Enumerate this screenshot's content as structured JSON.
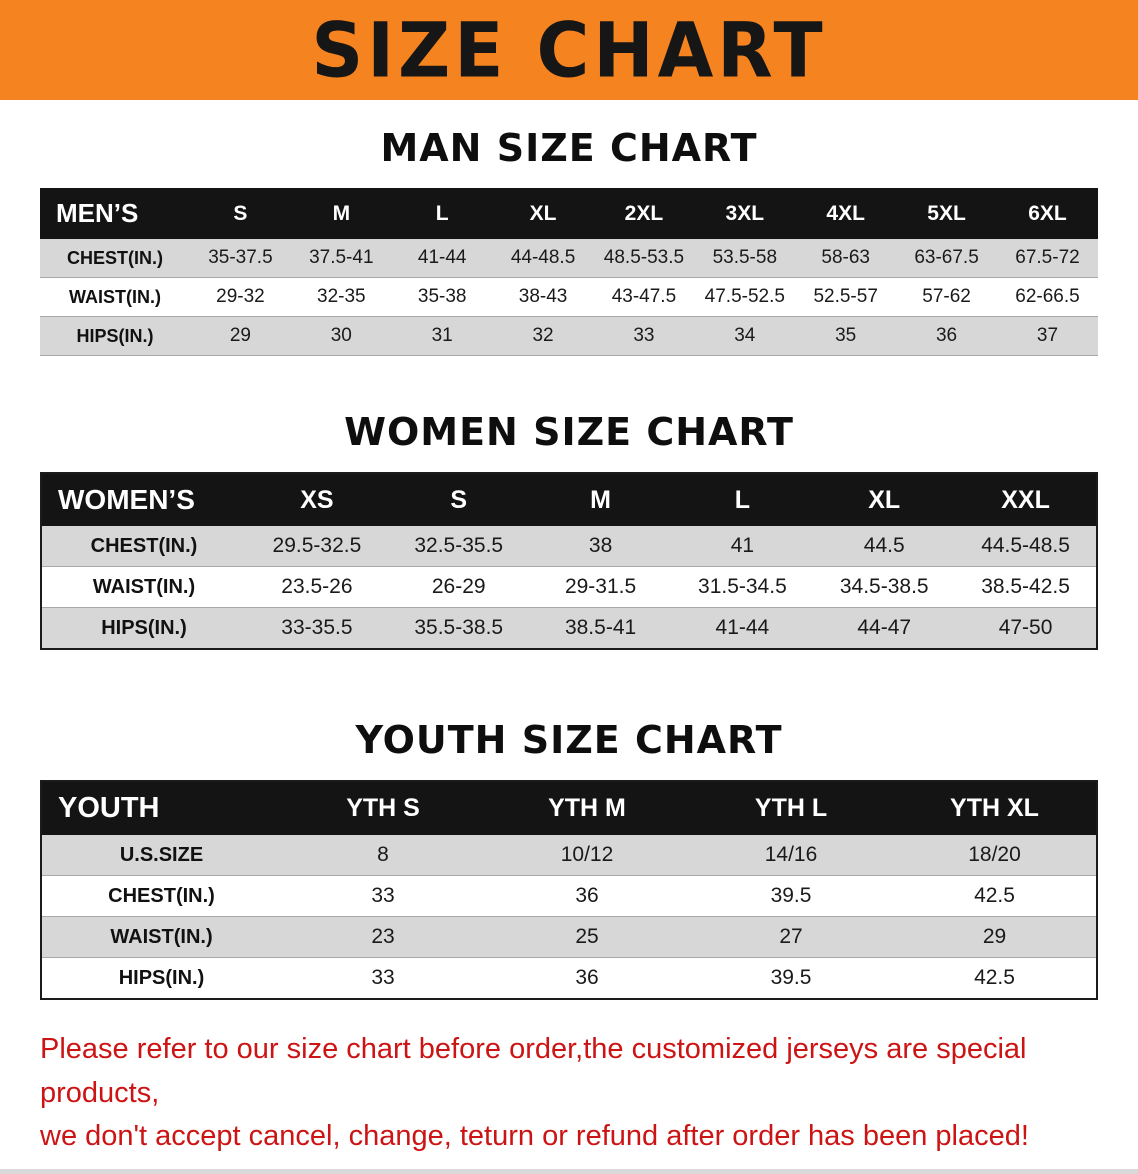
{
  "banner": {
    "title": "SIZE CHART"
  },
  "sections": [
    {
      "heading": "MAN SIZE CHART",
      "table": {
        "header": [
          "MEN’S",
          "S",
          "M",
          "L",
          "XL",
          "2XL",
          "3XL",
          "4XL",
          "5XL",
          "6XL"
        ],
        "rows": [
          [
            "CHEST(IN.)",
            "35-37.5",
            "37.5-41",
            "41-44",
            "44-48.5",
            "48.5-53.5",
            "53.5-58",
            "58-63",
            "63-67.5",
            "67.5-72"
          ],
          [
            "WAIST(IN.)",
            "29-32",
            "32-35",
            "35-38",
            "38-43",
            "43-47.5",
            "47.5-52.5",
            "52.5-57",
            "57-62",
            "62-66.5"
          ],
          [
            "HIPS(IN.)",
            "29",
            "30",
            "31",
            "32",
            "33",
            "34",
            "35",
            "36",
            "37"
          ]
        ]
      }
    },
    {
      "heading": "WOMEN SIZE CHART",
      "table": {
        "header": [
          "WOMEN’S",
          "XS",
          "S",
          "M",
          "L",
          "XL",
          "XXL"
        ],
        "rows": [
          [
            "CHEST(IN.)",
            "29.5-32.5",
            "32.5-35.5",
            "38",
            "41",
            "44.5",
            "44.5-48.5"
          ],
          [
            "WAIST(IN.)",
            "23.5-26",
            "26-29",
            "29-31.5",
            "31.5-34.5",
            "34.5-38.5",
            "38.5-42.5"
          ],
          [
            "HIPS(IN.)",
            "33-35.5",
            "35.5-38.5",
            "38.5-41",
            "41-44",
            "44-47",
            "47-50"
          ]
        ]
      }
    },
    {
      "heading": "YOUTH SIZE CHART",
      "table": {
        "header": [
          "YOUTH",
          "YTH S",
          "YTH M",
          "YTH L",
          "YTH XL"
        ],
        "rows": [
          [
            "U.S.SIZE",
            "8",
            "10/12",
            "14/16",
            "18/20"
          ],
          [
            "CHEST(IN.)",
            "33",
            "36",
            "39.5",
            "42.5"
          ],
          [
            "WAIST(IN.)",
            "23",
            "25",
            "27",
            "29"
          ],
          [
            "HIPS(IN.)",
            "33",
            "36",
            "39.5",
            "42.5"
          ]
        ]
      }
    }
  ],
  "disclaimer": {
    "line1": "Please refer to our size chart before order,the customized jerseys are special products,",
    "line2": "we don't accept cancel, change, teturn or refund after order has been placed!"
  },
  "colors": {
    "banner_bg": "#f5831f",
    "header_bg": "#141414",
    "row_alt_bg": "#d7d7d7",
    "disclaimer_red": "#cc1414"
  }
}
